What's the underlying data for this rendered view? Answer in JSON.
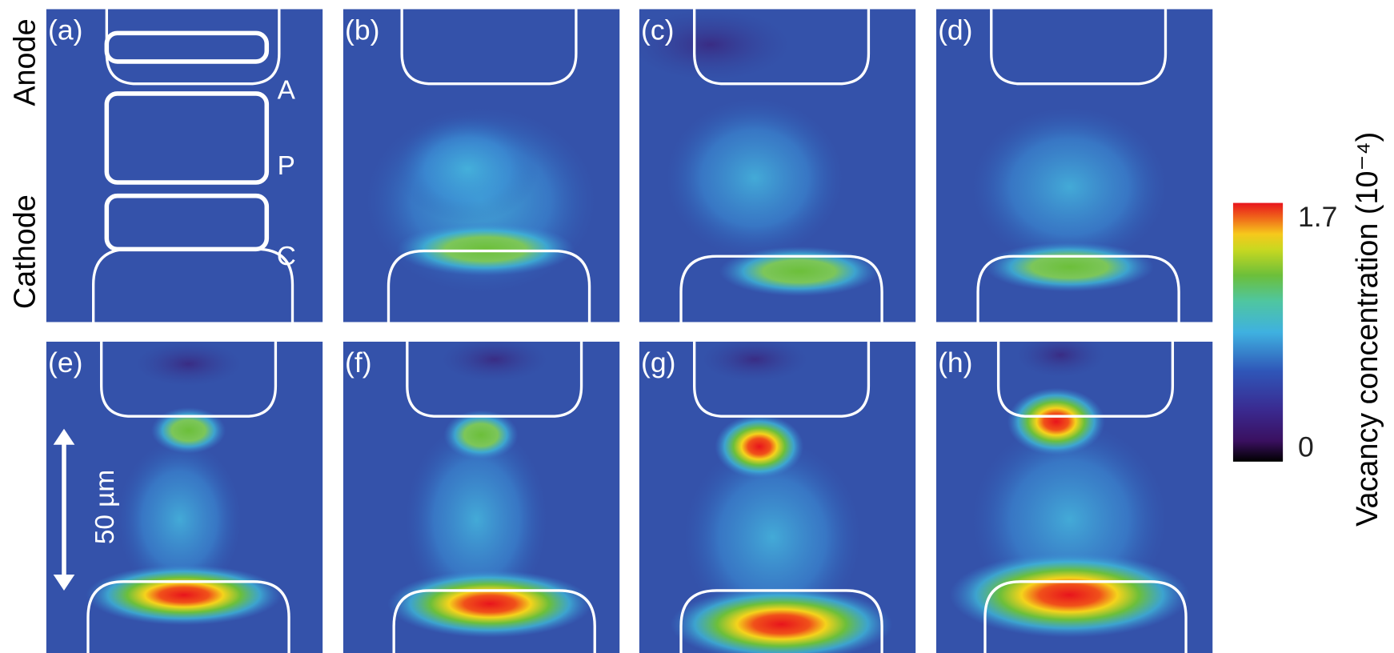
{
  "panels": [
    {
      "label": "(a)"
    },
    {
      "label": "(b)"
    },
    {
      "label": "(c)"
    },
    {
      "label": "(d)"
    },
    {
      "label": "(e)"
    },
    {
      "label": "(f)"
    },
    {
      "label": "(g)"
    },
    {
      "label": "(h)"
    }
  ],
  "side_labels": {
    "anode": "Anode",
    "cathode": "Cathode"
  },
  "regions": [
    "A",
    "P",
    "C"
  ],
  "scale_bar": "50 µm",
  "colorbar": {
    "label": "Vacancy concentration (10⁻⁴)",
    "range": [
      0,
      1.7
    ],
    "ticks": [
      1.7,
      0
    ]
  }
}
